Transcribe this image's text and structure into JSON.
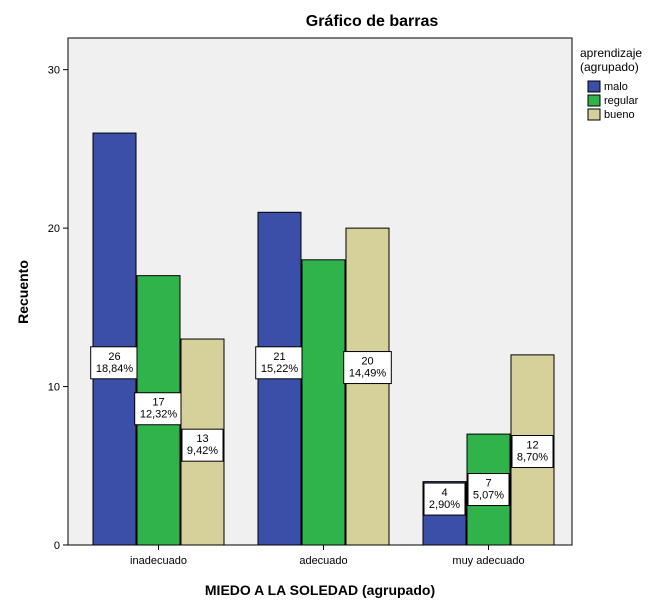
{
  "chart_data": {
    "type": "bar",
    "title": "Gráfico de barras",
    "xlabel": "MIEDO A LA SOLEDAD (agrupado)",
    "ylabel": "Recuento",
    "categories": [
      "inadecuado",
      "adecuado",
      "muy adecuado"
    ],
    "ylim": [
      0,
      32
    ],
    "yticks": [
      0,
      10,
      20,
      30
    ],
    "legend": {
      "title_lines": [
        "aprendizaje",
        "(agrupado)"
      ],
      "placement": "top-right, outside plot"
    },
    "series": [
      {
        "name": "malo",
        "color": "#3b4fa8",
        "values": [
          26,
          21,
          4
        ],
        "labels": [
          "26\n18,84%",
          "21\n15,22%",
          "4\n2,90%"
        ]
      },
      {
        "name": "regular",
        "color": "#2fb34a",
        "values": [
          17,
          18,
          7
        ],
        "labels": [
          "17\n12,32%",
          "",
          "7\n5,07%"
        ]
      },
      {
        "name": "bueno",
        "color": "#d6d19b",
        "values": [
          13,
          20,
          12
        ],
        "labels": [
          "13\n9,42%",
          "20\n14,49%",
          "12\n8,70%"
        ]
      }
    ],
    "plot_background": "#f0f0f0",
    "grid": false
  }
}
